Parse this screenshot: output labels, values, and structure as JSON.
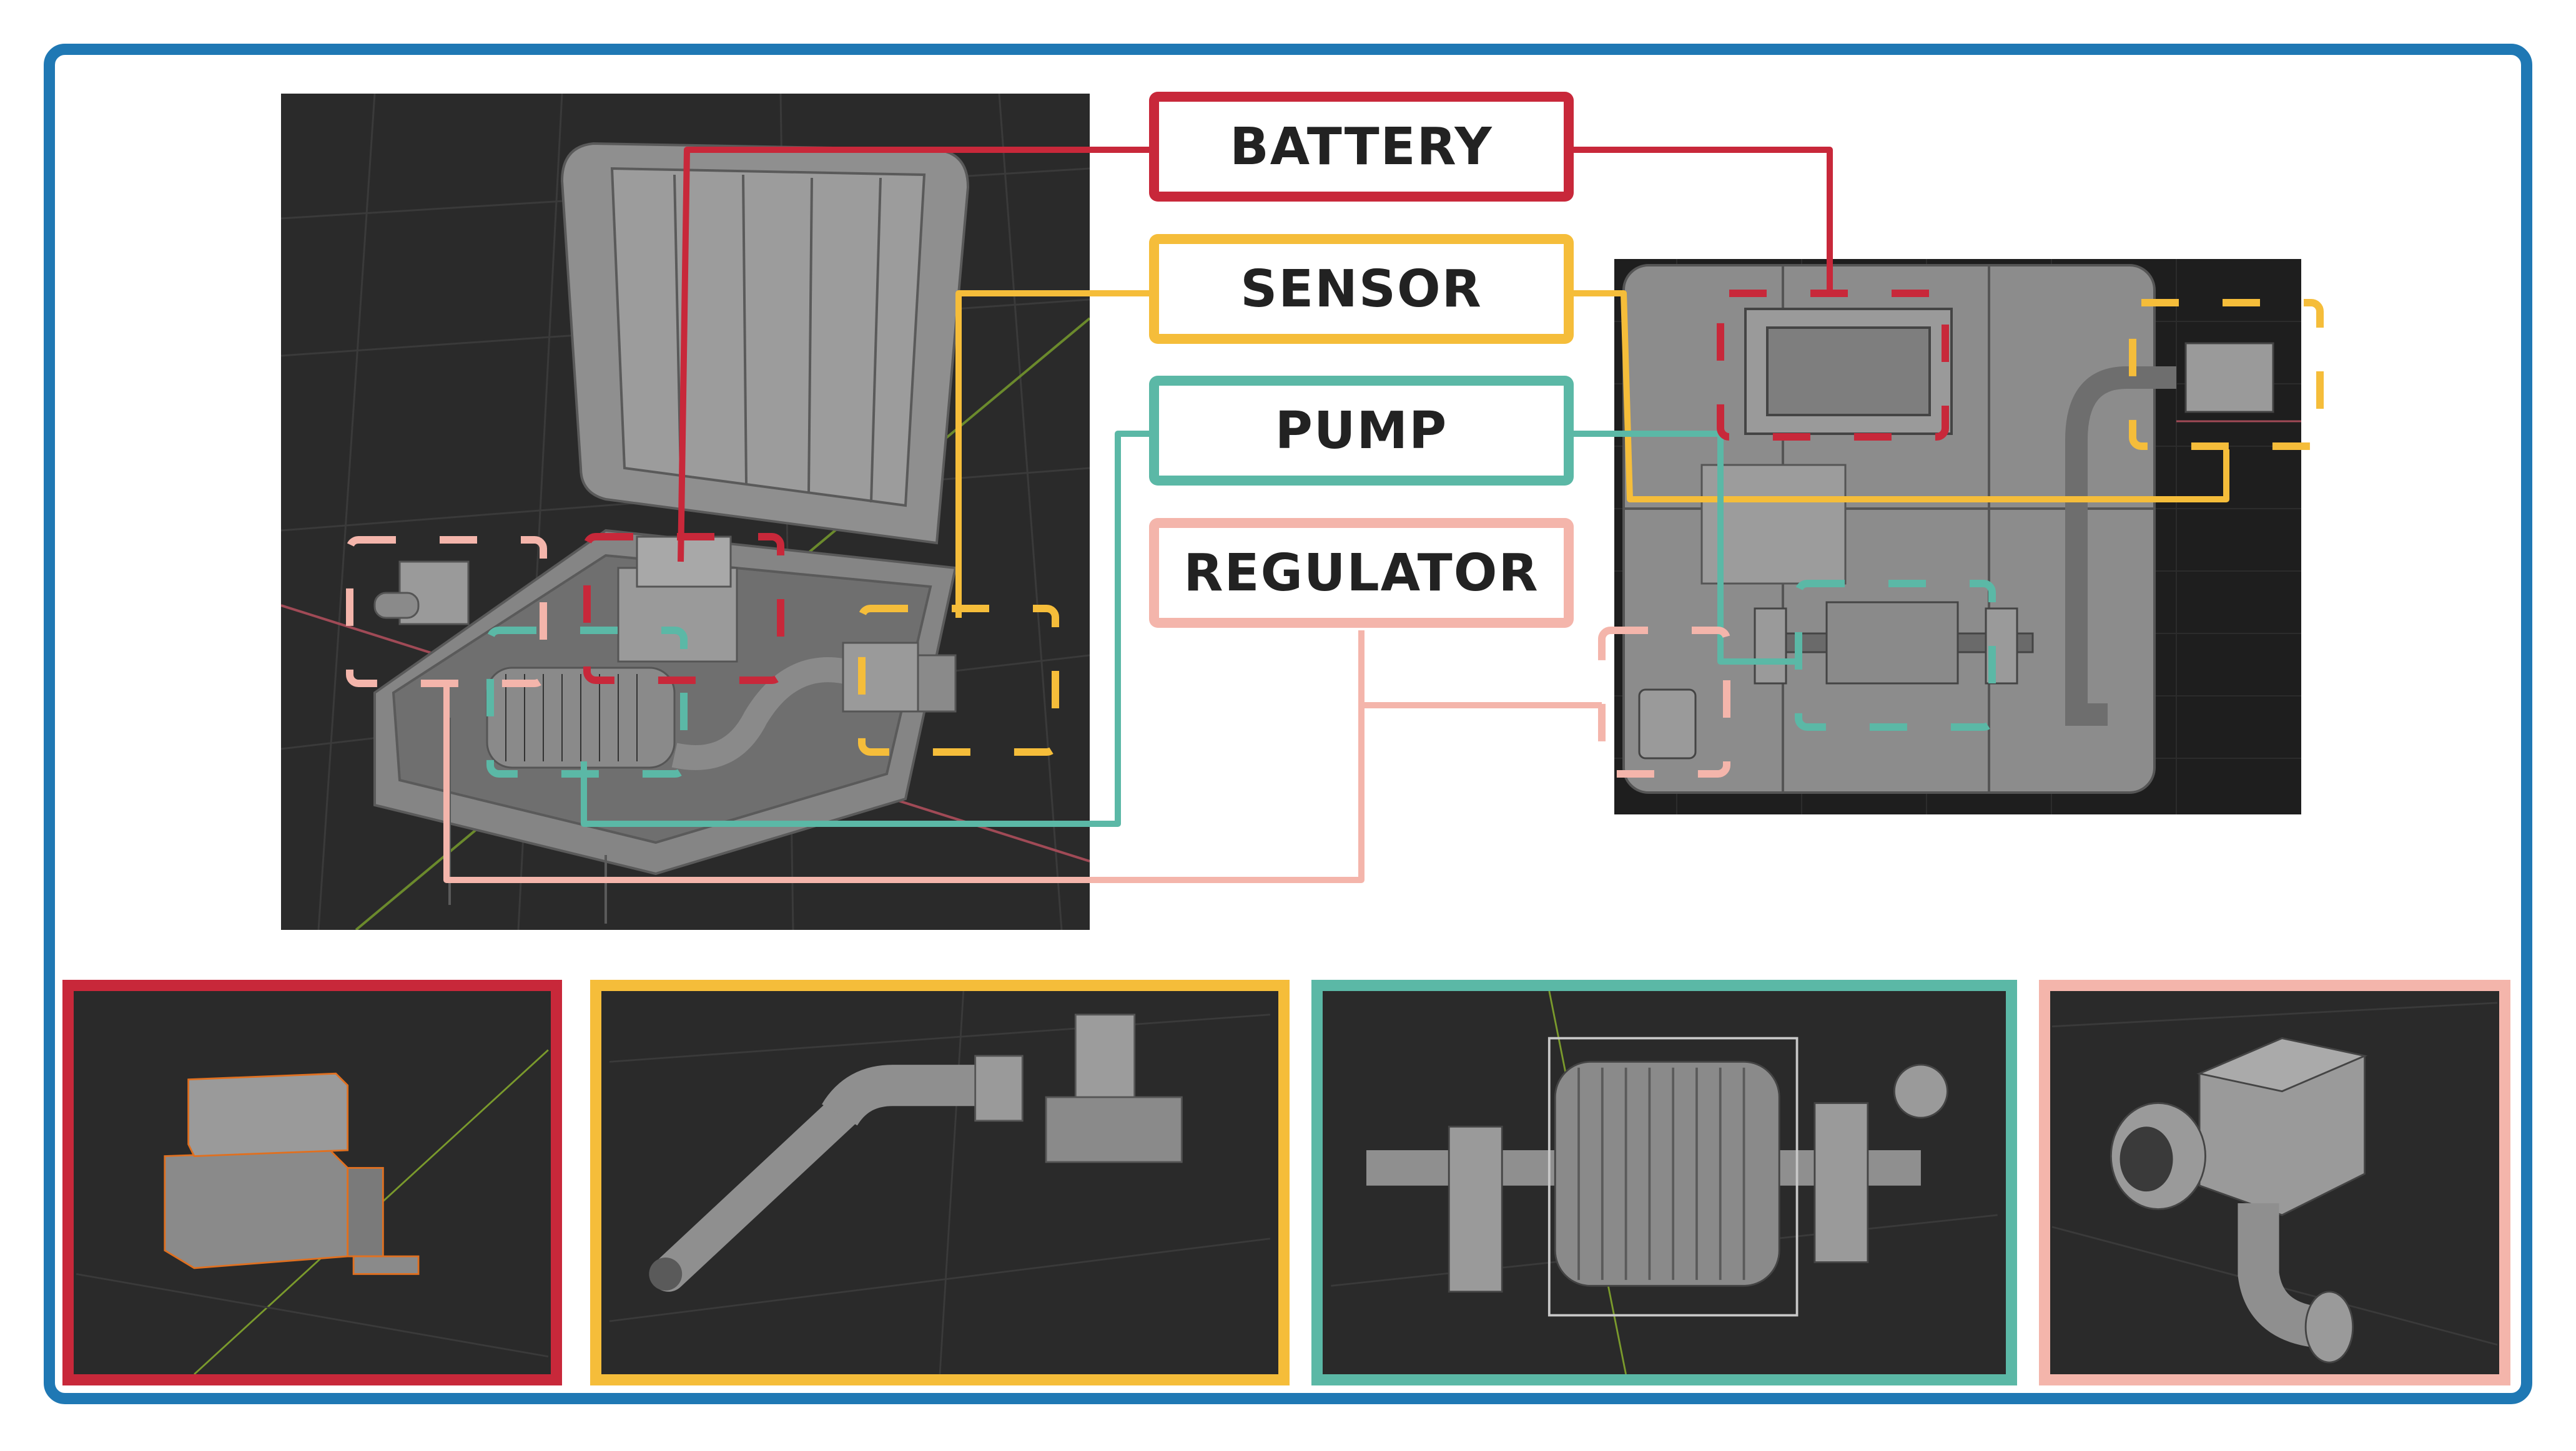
{
  "labels": {
    "battery": "BATTERY",
    "sensor": "SENSOR",
    "pump": "PUMP",
    "regulator": "REGULATOR"
  },
  "colors": {
    "frame": "#1f78b4",
    "battery": "#c8283a",
    "sensor": "#f5bd3a",
    "pump": "#5bb8a6",
    "regulator": "#f4b5ab",
    "viewport_bg": "#2a2a2a",
    "model_gray": "#8c8c8c"
  }
}
